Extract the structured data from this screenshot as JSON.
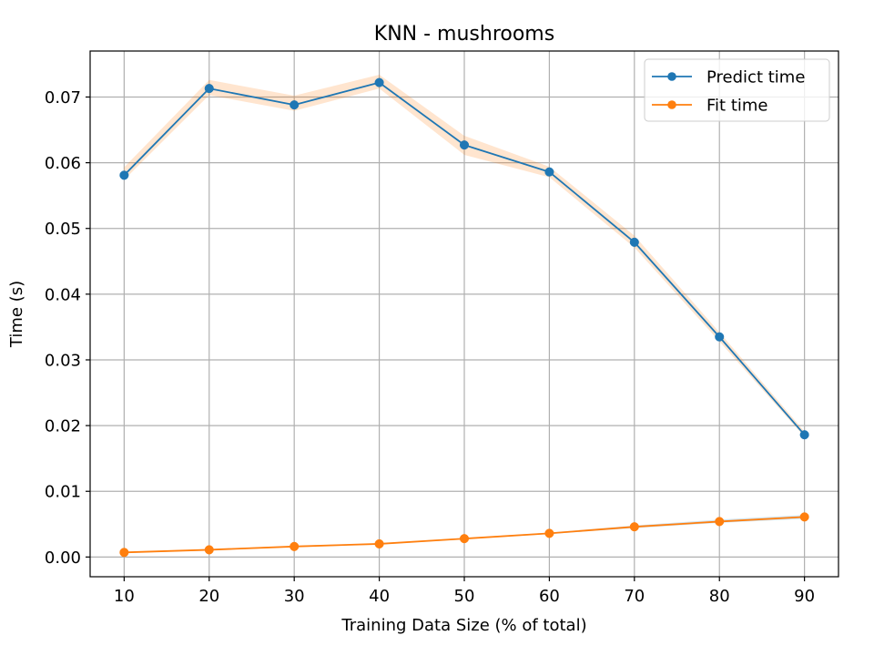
{
  "chart_data": {
    "type": "line",
    "title": "KNN - mushrooms",
    "xlabel": "Training Data Size (% of total)",
    "ylabel": "Time (s)",
    "x": [
      10,
      20,
      30,
      40,
      50,
      60,
      70,
      80,
      90
    ],
    "xlim": [
      6,
      94
    ],
    "ylim": [
      -0.003,
      0.077
    ],
    "xticks": [
      10,
      20,
      30,
      40,
      50,
      60,
      70,
      80,
      90
    ],
    "yticks": [
      0.0,
      0.01,
      0.02,
      0.03,
      0.04,
      0.05,
      0.06,
      0.07
    ],
    "ytick_labels": [
      "0.00",
      "0.01",
      "0.02",
      "0.03",
      "0.04",
      "0.05",
      "0.06",
      "0.07"
    ],
    "grid": true,
    "legend_position": "top-right",
    "series": [
      {
        "name": "Predict time",
        "color": "#1f77b4",
        "band_color": "#ff7f0e",
        "values": [
          0.0581,
          0.0713,
          0.0688,
          0.0722,
          0.0627,
          0.0586,
          0.0479,
          0.0335,
          0.0186
        ],
        "band_lower": [
          0.0574,
          0.0703,
          0.0679,
          0.0713,
          0.0612,
          0.0578,
          0.0471,
          0.0328,
          0.0183
        ],
        "band_upper": [
          0.0593,
          0.0726,
          0.0702,
          0.0734,
          0.0641,
          0.0594,
          0.0489,
          0.0342,
          0.0191
        ]
      },
      {
        "name": "Fit time",
        "color": "#ff7f0e",
        "band_color": "#1f77b4",
        "values": [
          0.0007,
          0.0011,
          0.0016,
          0.002,
          0.0028,
          0.0036,
          0.0046,
          0.0054,
          0.0061
        ],
        "band_lower": [
          0.0006,
          0.001,
          0.0015,
          0.0019,
          0.0027,
          0.0035,
          0.0044,
          0.0052,
          0.0058
        ],
        "band_upper": [
          0.0008,
          0.0012,
          0.0017,
          0.0021,
          0.0029,
          0.0037,
          0.0048,
          0.0057,
          0.0064
        ]
      }
    ]
  }
}
